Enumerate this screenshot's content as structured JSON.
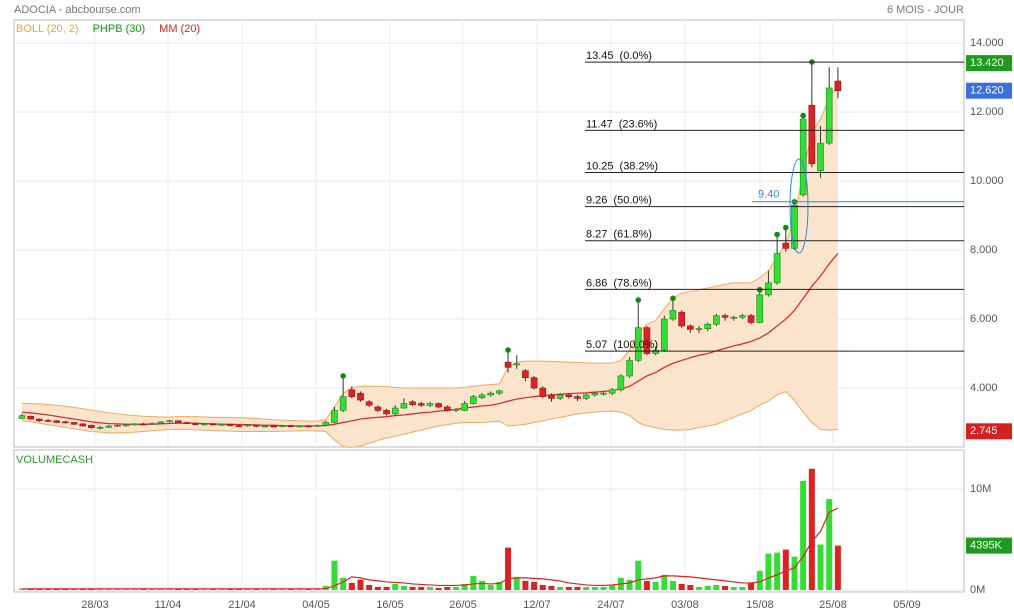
{
  "header": {
    "title": "ADOCIA - abcbourse.com",
    "period": "6 MOIS - JOUR"
  },
  "chart_data": {
    "type": "candlestick",
    "legend": [
      {
        "name": "BOLL (20, 2)",
        "color": "#f0a040"
      },
      {
        "name": "PHPB (30)",
        "color": "#119911"
      },
      {
        "name": "MM (20)",
        "color": "#e02020"
      }
    ],
    "up_color": "#33dd33",
    "down_color": "#dd2222",
    "xlim": [
      -0.92,
      108.53
    ],
    "xticks": [
      {
        "value": 8.41,
        "label": "28/03"
      },
      {
        "value": 16.82,
        "label": "11/04"
      },
      {
        "value": 25.35,
        "label": "21/04"
      },
      {
        "value": 33.87,
        "label": "04/05"
      },
      {
        "value": 42.4,
        "label": "16/05"
      },
      {
        "value": 50.81,
        "label": "26/05"
      },
      {
        "value": 59.33,
        "label": "12/07"
      },
      {
        "value": 67.86,
        "label": "24/07"
      },
      {
        "value": 76.38,
        "label": "03/08"
      },
      {
        "value": 85.02,
        "label": "15/08"
      },
      {
        "value": 93.43,
        "label": "25/08"
      },
      {
        "value": 101.96,
        "label": "05/09"
      }
    ],
    "ylim": [
      2.29,
      14.67
    ],
    "yticks": [
      {
        "value": 4,
        "label": "4.000"
      },
      {
        "value": 6,
        "label": "6.000"
      },
      {
        "value": 8,
        "label": "8.000"
      },
      {
        "value": 10,
        "label": "10.000"
      },
      {
        "value": 12,
        "label": "12.000"
      },
      {
        "value": 14,
        "label": "14.000"
      }
    ],
    "ohlc": [
      [
        3.12,
        3.25,
        3.1,
        3.2
      ],
      [
        3.18,
        3.2,
        3.08,
        3.1
      ],
      [
        3.1,
        3.12,
        3.02,
        3.05
      ],
      [
        3.06,
        3.1,
        3.02,
        3.05
      ],
      [
        3.05,
        3.07,
        2.98,
        3.0
      ],
      [
        3.02,
        3.05,
        2.97,
        3.0
      ],
      [
        3.0,
        3.02,
        2.93,
        2.95
      ],
      [
        2.96,
        2.98,
        2.88,
        2.9
      ],
      [
        2.92,
        2.94,
        2.82,
        2.85
      ],
      [
        2.84,
        2.9,
        2.8,
        2.86
      ],
      [
        2.86,
        2.93,
        2.84,
        2.9
      ],
      [
        2.9,
        2.94,
        2.87,
        2.92
      ],
      [
        2.9,
        2.96,
        2.88,
        2.94
      ],
      [
        2.93,
        2.98,
        2.91,
        2.96
      ],
      [
        2.96,
        2.99,
        2.92,
        2.95
      ],
      [
        2.95,
        3.0,
        2.93,
        2.98
      ],
      [
        2.98,
        3.04,
        2.96,
        3.02
      ],
      [
        3.02,
        3.08,
        3.0,
        3.05
      ],
      [
        3.05,
        3.06,
        2.98,
        3.0
      ],
      [
        3.0,
        3.02,
        2.95,
        2.97
      ],
      [
        2.97,
        3.0,
        2.92,
        2.94
      ],
      [
        2.94,
        2.98,
        2.91,
        2.96
      ],
      [
        2.96,
        2.98,
        2.92,
        2.94
      ],
      [
        2.94,
        2.97,
        2.9,
        2.95
      ],
      [
        2.95,
        2.96,
        2.89,
        2.91
      ],
      [
        2.91,
        2.94,
        2.88,
        2.9
      ],
      [
        2.9,
        2.95,
        2.88,
        2.93
      ],
      [
        2.93,
        2.94,
        2.87,
        2.89
      ],
      [
        2.89,
        2.92,
        2.86,
        2.9
      ],
      [
        2.9,
        2.93,
        2.87,
        2.88
      ],
      [
        2.88,
        2.92,
        2.86,
        2.91
      ],
      [
        2.91,
        2.93,
        2.86,
        2.88
      ],
      [
        2.88,
        2.92,
        2.86,
        2.9
      ],
      [
        2.9,
        2.93,
        2.87,
        2.89
      ],
      [
        2.89,
        2.94,
        2.87,
        2.92
      ],
      [
        2.92,
        3.05,
        2.9,
        3.0
      ],
      [
        3.0,
        3.45,
        2.98,
        3.35
      ],
      [
        3.35,
        4.35,
        3.3,
        3.75
      ],
      [
        3.95,
        4.05,
        3.7,
        3.75
      ],
      [
        3.85,
        3.9,
        3.6,
        3.65
      ],
      [
        3.6,
        3.65,
        3.45,
        3.5
      ],
      [
        3.45,
        3.5,
        3.3,
        3.35
      ],
      [
        3.35,
        3.4,
        3.2,
        3.25
      ],
      [
        3.25,
        3.5,
        3.22,
        3.42
      ],
      [
        3.42,
        3.7,
        3.4,
        3.55
      ],
      [
        3.6,
        3.65,
        3.48,
        3.52
      ],
      [
        3.55,
        3.6,
        3.45,
        3.5
      ],
      [
        3.5,
        3.6,
        3.45,
        3.55
      ],
      [
        3.55,
        3.58,
        3.42,
        3.45
      ],
      [
        3.45,
        3.5,
        3.32,
        3.35
      ],
      [
        3.35,
        3.42,
        3.3,
        3.38
      ],
      [
        3.35,
        3.62,
        3.33,
        3.55
      ],
      [
        3.55,
        3.8,
        3.52,
        3.75
      ],
      [
        3.72,
        3.85,
        3.68,
        3.8
      ],
      [
        3.8,
        3.9,
        3.75,
        3.85
      ],
      [
        3.85,
        3.95,
        3.8,
        3.92
      ],
      [
        4.75,
        5.1,
        4.45,
        4.6
      ],
      [
        4.68,
        4.95,
        4.55,
        4.7
      ],
      [
        4.5,
        4.55,
        4.2,
        4.3
      ],
      [
        4.3,
        4.35,
        3.95,
        4.0
      ],
      [
        4.0,
        4.05,
        3.7,
        3.75
      ],
      [
        3.8,
        3.85,
        3.6,
        3.7
      ],
      [
        3.7,
        3.85,
        3.65,
        3.8
      ],
      [
        3.8,
        3.85,
        3.7,
        3.75
      ],
      [
        3.75,
        3.8,
        3.62,
        3.7
      ],
      [
        3.7,
        3.85,
        3.65,
        3.8
      ],
      [
        3.8,
        3.9,
        3.75,
        3.85
      ],
      [
        3.85,
        3.92,
        3.78,
        3.85
      ],
      [
        3.85,
        4.0,
        3.8,
        3.95
      ],
      [
        3.95,
        4.4,
        3.9,
        4.35
      ],
      [
        4.35,
        4.9,
        4.3,
        4.8
      ],
      [
        4.8,
        6.55,
        4.75,
        5.75
      ],
      [
        5.75,
        5.8,
        4.95,
        5.0
      ],
      [
        5.0,
        5.2,
        4.95,
        5.1
      ],
      [
        5.1,
        6.1,
        5.05,
        6.0
      ],
      [
        6.0,
        6.6,
        5.95,
        6.25
      ],
      [
        6.2,
        6.25,
        5.75,
        5.8
      ],
      [
        5.8,
        5.85,
        5.6,
        5.7
      ],
      [
        5.7,
        5.8,
        5.6,
        5.72
      ],
      [
        5.72,
        5.9,
        5.65,
        5.85
      ],
      [
        5.85,
        6.15,
        5.8,
        6.1
      ],
      [
        6.1,
        6.15,
        5.95,
        6.05
      ],
      [
        6.05,
        6.1,
        5.95,
        6.05
      ],
      [
        6.05,
        6.15,
        6.0,
        6.1
      ],
      [
        6.1,
        6.15,
        5.85,
        5.9
      ],
      [
        5.9,
        6.85,
        5.88,
        6.7
      ],
      [
        6.7,
        7.4,
        6.65,
        7.05
      ],
      [
        7.05,
        8.45,
        7.0,
        7.9
      ],
      [
        8.2,
        8.65,
        7.95,
        8.05
      ],
      [
        8.05,
        9.4,
        8.0,
        9.3
      ],
      [
        9.6,
        11.9,
        9.55,
        11.8
      ],
      [
        12.2,
        13.45,
        10.4,
        10.5
      ],
      [
        10.3,
        11.6,
        10.1,
        11.1
      ],
      [
        11.1,
        13.3,
        11.05,
        12.7
      ],
      [
        12.9,
        13.3,
        12.4,
        12.62
      ]
    ],
    "bollinger": {
      "color": "#f0a860",
      "fill": "#fbe4cc",
      "upper": [
        3.55,
        3.55,
        3.54,
        3.52,
        3.5,
        3.47,
        3.44,
        3.4,
        3.36,
        3.32,
        3.28,
        3.25,
        3.22,
        3.2,
        3.18,
        3.17,
        3.16,
        3.16,
        3.17,
        3.17,
        3.17,
        3.16,
        3.15,
        3.15,
        3.14,
        3.14,
        3.13,
        3.12,
        3.1,
        3.08,
        3.07,
        3.06,
        3.05,
        3.04,
        3.04,
        3.08,
        3.45,
        3.85,
        4.0,
        4.05,
        4.05,
        4.05,
        4.04,
        4.02,
        4.0,
        4.0,
        4.0,
        4.0,
        4.0,
        4.0,
        4.0,
        4.02,
        4.05,
        4.08,
        4.1,
        4.12,
        4.6,
        4.75,
        4.78,
        4.78,
        4.78,
        4.77,
        4.76,
        4.75,
        4.74,
        4.73,
        4.72,
        4.72,
        4.72,
        4.8,
        5.1,
        5.6,
        5.85,
        5.95,
        6.3,
        6.6,
        6.75,
        6.8,
        6.85,
        6.9,
        6.95,
        7.0,
        7.05,
        7.05,
        7.05,
        7.2,
        7.4,
        7.8,
        8.2,
        8.9,
        10.3,
        11.4,
        11.8,
        12.4,
        12.8
      ],
      "lower": [
        3.05,
        3.02,
        2.98,
        2.94,
        2.9,
        2.86,
        2.82,
        2.78,
        2.74,
        2.72,
        2.7,
        2.7,
        2.71,
        2.72,
        2.74,
        2.76,
        2.78,
        2.8,
        2.8,
        2.8,
        2.79,
        2.78,
        2.77,
        2.76,
        2.75,
        2.74,
        2.74,
        2.74,
        2.74,
        2.74,
        2.75,
        2.75,
        2.76,
        2.76,
        2.76,
        2.74,
        2.5,
        2.3,
        2.28,
        2.32,
        2.4,
        2.48,
        2.55,
        2.6,
        2.66,
        2.72,
        2.78,
        2.84,
        2.9,
        2.94,
        2.98,
        3.0,
        3.0,
        3.0,
        3.02,
        3.04,
        2.9,
        2.92,
        2.95,
        3.0,
        3.05,
        3.1,
        3.15,
        3.2,
        3.25,
        3.28,
        3.3,
        3.32,
        3.33,
        3.3,
        3.2,
        3.0,
        2.9,
        2.85,
        2.8,
        2.78,
        2.78,
        2.8,
        2.85,
        2.9,
        2.95,
        3.05,
        3.15,
        3.25,
        3.35,
        3.5,
        3.62,
        3.8,
        3.9,
        3.65,
        3.3,
        3.0,
        2.8,
        2.78,
        2.8
      ]
    },
    "mm20": {
      "color": "#e02020",
      "values": [
        3.3,
        3.28,
        3.25,
        3.22,
        3.18,
        3.14,
        3.1,
        3.06,
        3.02,
        2.99,
        2.97,
        2.96,
        2.95,
        2.95,
        2.95,
        2.95,
        2.96,
        2.97,
        2.98,
        2.98,
        2.98,
        2.97,
        2.96,
        2.95,
        2.95,
        2.94,
        2.94,
        2.93,
        2.92,
        2.92,
        2.91,
        2.9,
        2.9,
        2.9,
        2.9,
        2.91,
        2.95,
        3.0,
        3.05,
        3.1,
        3.13,
        3.15,
        3.17,
        3.2,
        3.22,
        3.25,
        3.28,
        3.3,
        3.33,
        3.35,
        3.38,
        3.42,
        3.45,
        3.48,
        3.5,
        3.55,
        3.62,
        3.68,
        3.72,
        3.75,
        3.78,
        3.8,
        3.82,
        3.84,
        3.85,
        3.86,
        3.88,
        3.9,
        3.93,
        3.97,
        4.05,
        4.2,
        4.35,
        4.45,
        4.6,
        4.72,
        4.8,
        4.88,
        4.95,
        5.0,
        5.08,
        5.15,
        5.22,
        5.28,
        5.35,
        5.45,
        5.6,
        5.8,
        6.0,
        6.25,
        6.6,
        6.95,
        7.25,
        7.6,
        7.9
      ]
    },
    "phpb": {
      "color": "#118811",
      "x": [
        37,
        56,
        71,
        75,
        85,
        87,
        88,
        89,
        90,
        91
      ],
      "values": [
        4.35,
        5.1,
        6.55,
        6.6,
        6.85,
        8.45,
        8.65,
        9.4,
        11.9,
        13.45
      ]
    },
    "fibonacci": [
      {
        "value": 13.45,
        "label": "(0.0%)"
      },
      {
        "value": 11.47,
        "label": "(23.6%)"
      },
      {
        "value": 10.25,
        "label": "(38.2%)"
      },
      {
        "value": 9.26,
        "label": "(50.0%)"
      },
      {
        "value": 8.27,
        "label": "(61.8%)"
      },
      {
        "value": 6.86,
        "label": "(78.6%)"
      },
      {
        "value": 5.07,
        "label": "(100.0%)"
      }
    ],
    "annotation": {
      "value": 9.4,
      "label": "9.40",
      "color": "#3388dd"
    },
    "price_tags": [
      {
        "value": 13.42,
        "label": "13.420",
        "color": "#1e9a1e"
      },
      {
        "value": 12.62,
        "label": "12.620",
        "color": "#3b6fe0"
      },
      {
        "value": 2.745,
        "label": "2.745",
        "color": "#d42020"
      }
    ],
    "volume": {
      "title": "VOLUMECASH",
      "ylim": [
        0,
        13.66
      ],
      "yticks": [
        {
          "value": 0,
          "label": "0M"
        },
        {
          "value": 10,
          "label": "10M"
        }
      ],
      "values": [
        0.15,
        0.1,
        0.12,
        0.08,
        0.1,
        0.1,
        0.08,
        0.12,
        0.15,
        0.1,
        0.08,
        0.1,
        0.12,
        0.1,
        0.08,
        0.1,
        0.12,
        0.1,
        0.1,
        0.08,
        0.1,
        0.08,
        0.1,
        0.1,
        0.12,
        0.08,
        0.1,
        0.08,
        0.1,
        0.08,
        0.1,
        0.08,
        0.1,
        0.1,
        0.12,
        0.4,
        2.9,
        1.2,
        0.7,
        1.0,
        0.5,
        0.3,
        0.3,
        0.6,
        0.4,
        0.3,
        0.3,
        0.3,
        0.2,
        0.3,
        0.3,
        0.6,
        1.4,
        0.9,
        0.5,
        0.8,
        4.2,
        1.3,
        0.9,
        0.8,
        0.5,
        0.4,
        0.3,
        0.3,
        0.3,
        0.3,
        0.3,
        0.3,
        0.5,
        1.2,
        1.0,
        2.9,
        0.9,
        0.8,
        1.5,
        0.9,
        0.6,
        0.5,
        0.3,
        0.4,
        0.5,
        0.4,
        0.3,
        0.3,
        0.7,
        1.9,
        3.6,
        3.7,
        4.0,
        3.3,
        10.8,
        12.0,
        4.5,
        9.0,
        4.395
      ],
      "average": {
        "color": "#e02020",
        "values": [
          0.12,
          0.12,
          0.12,
          0.12,
          0.12,
          0.12,
          0.12,
          0.12,
          0.12,
          0.12,
          0.12,
          0.12,
          0.12,
          0.12,
          0.12,
          0.12,
          0.12,
          0.12,
          0.12,
          0.12,
          0.12,
          0.12,
          0.12,
          0.12,
          0.12,
          0.12,
          0.12,
          0.12,
          0.12,
          0.12,
          0.12,
          0.12,
          0.12,
          0.12,
          0.12,
          0.13,
          0.4,
          0.8,
          1.3,
          1.2,
          1.0,
          0.9,
          0.8,
          0.75,
          0.7,
          0.6,
          0.55,
          0.5,
          0.45,
          0.45,
          0.45,
          0.5,
          0.6,
          0.65,
          0.6,
          0.65,
          1.1,
          1.2,
          1.2,
          1.15,
          1.1,
          1.0,
          0.9,
          0.7,
          0.6,
          0.5,
          0.45,
          0.45,
          0.5,
          0.6,
          0.7,
          1.0,
          1.1,
          1.2,
          1.4,
          1.4,
          1.35,
          1.3,
          1.2,
          1.1,
          1.0,
          0.9,
          0.8,
          0.7,
          0.7,
          0.8,
          1.2,
          1.5,
          1.9,
          2.2,
          3.3,
          4.8,
          5.8,
          7.7,
          8.1
        ]
      },
      "tag": {
        "value": 4.395,
        "label": "4395K",
        "color": "#1e9a1e"
      }
    }
  }
}
